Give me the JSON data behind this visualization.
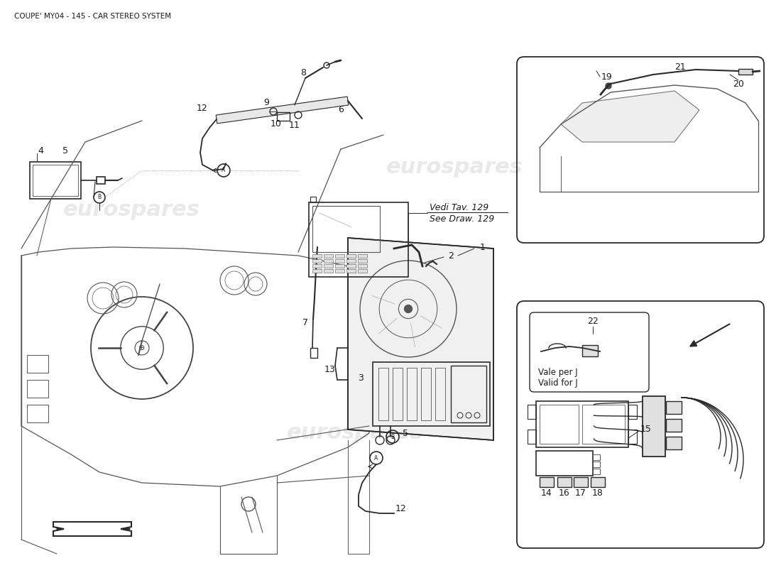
{
  "title": "COUPE' MY04 - 145 - CAR STEREO SYSTEM",
  "title_fontsize": 7.5,
  "background_color": "#ffffff",
  "watermark_text": "eurospares",
  "watermark_color": "#c8c8c8",
  "watermark_alpha": 0.4,
  "vedi_tav_text": "Vedi Tav. 129",
  "see_draw_text": "See Draw. 129",
  "vale_per_j_text": "Vale per J\nValid for J"
}
